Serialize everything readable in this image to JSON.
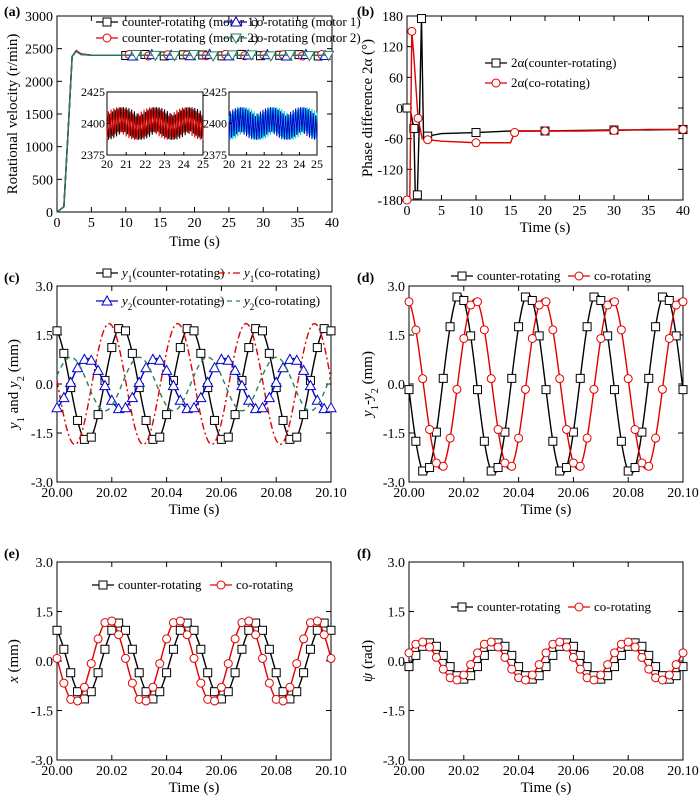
{
  "chart_data": [
    {
      "panel": "(a)",
      "type": "line",
      "xlabel": "Time (s)",
      "ylabel": "Rotational velocity (r/min)",
      "xlim": [
        0,
        40
      ],
      "ylim": [
        0,
        3000
      ],
      "xticks": [
        "0",
        "5",
        "10",
        "15",
        "20",
        "25",
        "30",
        "35",
        "40"
      ],
      "yticks": [
        "0",
        "500",
        "1000",
        "1500",
        "2000",
        "2500",
        "3000"
      ],
      "legend_position": "top",
      "steady_state": 2400,
      "series": [
        {
          "name": "counter-rotating (motor 1)",
          "color": "#000000",
          "marker": "square",
          "values": [
            [
              0,
              0
            ],
            [
              1,
              80
            ],
            [
              1.6,
              1200
            ],
            [
              2.2,
              2380
            ],
            [
              2.8,
              2470
            ],
            [
              3.5,
              2420
            ],
            [
              5,
              2400
            ],
            [
              40,
              2400
            ]
          ]
        },
        {
          "name": "counter-rotating (motor 2)",
          "color": "#e00000",
          "marker": "circle",
          "values": [
            [
              0,
              0
            ],
            [
              1,
              80
            ],
            [
              1.6,
              1200
            ],
            [
              2.2,
              2380
            ],
            [
              2.8,
              2470
            ],
            [
              3.5,
              2420
            ],
            [
              5,
              2400
            ],
            [
              40,
              2400
            ]
          ]
        },
        {
          "name": "co-rotating (motor 1)",
          "color": "#0000cc",
          "marker": "triangle-up",
          "values": [
            [
              0,
              0
            ],
            [
              1,
              80
            ],
            [
              1.6,
              1200
            ],
            [
              2.2,
              2380
            ],
            [
              2.8,
              2460
            ],
            [
              3.5,
              2410
            ],
            [
              5,
              2400
            ],
            [
              40,
              2400
            ]
          ]
        },
        {
          "name": "co-rotating (motor 2)",
          "color": "#2e7d5b",
          "marker": "triangle-down",
          "values": [
            [
              0,
              0
            ],
            [
              1,
              80
            ],
            [
              1.6,
              1200
            ],
            [
              2.2,
              2380
            ],
            [
              2.8,
              2460
            ],
            [
              3.5,
              2410
            ],
            [
              5,
              2400
            ],
            [
              40,
              2400
            ]
          ]
        }
      ],
      "insets": [
        {
          "xlim": [
            20,
            25
          ],
          "ylim": [
            2375,
            2425
          ],
          "xticks": [
            "20",
            "21",
            "22",
            "23",
            "24",
            "25"
          ],
          "yticks": [
            "2375",
            "2400",
            "2425"
          ],
          "series_colors": [
            "#000000",
            "#e00000"
          ]
        },
        {
          "xlim": [
            20,
            25
          ],
          "ylim": [
            2375,
            2425
          ],
          "xticks": [
            "20",
            "21",
            "22",
            "23",
            "24",
            "25"
          ],
          "yticks": [
            "2375",
            "2400",
            "2425"
          ],
          "series_colors": [
            "#00cccc",
            "#0000cc"
          ]
        }
      ]
    },
    {
      "panel": "(b)",
      "type": "line",
      "xlabel": "Time (s)",
      "ylabel": "Phase difference 2α (°)",
      "xlim": [
        0,
        40
      ],
      "ylim": [
        -180,
        180
      ],
      "xticks": [
        "0",
        "5",
        "10",
        "15",
        "20",
        "25",
        "30",
        "35",
        "40"
      ],
      "yticks": [
        "-180",
        "-120",
        "-60",
        "0",
        "60",
        "120",
        "180"
      ],
      "legend_position": "top-right",
      "series": [
        {
          "name": "2α(counter-rotating)",
          "color": "#000000",
          "marker": "square",
          "values": [
            [
              0,
              0
            ],
            [
              0.5,
              -5
            ],
            [
              1,
              -40
            ],
            [
              1.2,
              -170
            ],
            [
              1.5,
              -170
            ],
            [
              1.8,
              -20
            ],
            [
              2.1,
              175
            ],
            [
              2.4,
              -60
            ],
            [
              3,
              -55
            ],
            [
              5,
              -50
            ],
            [
              10,
              -48
            ],
            [
              15,
              -45
            ],
            [
              20,
              -45
            ],
            [
              25,
              -44
            ],
            [
              30,
              -43
            ],
            [
              35,
              -43
            ],
            [
              40,
              -42
            ]
          ]
        },
        {
          "name": "2α(co-rotating)",
          "color": "#e00000",
          "marker": "circle",
          "values": [
            [
              0,
              -180
            ],
            [
              0.4,
              -180
            ],
            [
              0.7,
              150
            ],
            [
              1,
              100
            ],
            [
              1.6,
              -20
            ],
            [
              2.2,
              -60
            ],
            [
              3,
              -62
            ],
            [
              5,
              -65
            ],
            [
              10,
              -68
            ],
            [
              15,
              -68
            ],
            [
              15.6,
              -48
            ],
            [
              16,
              -45
            ],
            [
              20,
              -45
            ],
            [
              25,
              -45
            ],
            [
              30,
              -44
            ],
            [
              35,
              -42
            ],
            [
              40,
              -42
            ]
          ]
        }
      ]
    },
    {
      "panel": "(c)",
      "type": "line",
      "xlabel": "Time (s)",
      "ylabel": "y1 and y2 (mm)",
      "xlim": [
        20.0,
        20.1
      ],
      "ylim": [
        -3.0,
        3.0
      ],
      "xticks": [
        "20.00",
        "20.02",
        "20.04",
        "20.06",
        "20.08",
        "20.10"
      ],
      "yticks": [
        "-3.0",
        "-1.5",
        "0.0",
        "1.5",
        "3.0"
      ],
      "legend_position": "top",
      "series": [
        {
          "name": "y1(counter-rotating)",
          "color": "#000000",
          "marker": "square",
          "dash": "",
          "amplitude": 1.75,
          "peak_time": 20.0235,
          "period": 0.025
        },
        {
          "name": "y1(co-rotating)",
          "color": "#e00000",
          "marker": "none",
          "dash": "7,3,2,3",
          "amplitude": 1.85,
          "peak_time": 20.019,
          "period": 0.025
        },
        {
          "name": "y2(counter-rotating)",
          "color": "#0000cc",
          "marker": "triangle-up",
          "dash": "",
          "amplitude": 0.78,
          "peak_time": 20.011,
          "period": 0.025
        },
        {
          "name": "y2(co-rotating)",
          "color": "#2e7d5b",
          "marker": "none",
          "dash": "5,4",
          "amplitude": 0.82,
          "peak_time": 20.005,
          "period": 0.025
        }
      ]
    },
    {
      "panel": "(d)",
      "type": "line",
      "xlabel": "Time (s)",
      "ylabel": "y1-y2 (mm)",
      "xlim": [
        20.0,
        20.1
      ],
      "ylim": [
        -3.0,
        3.0
      ],
      "xticks": [
        "20.00",
        "20.02",
        "20.04",
        "20.06",
        "20.08",
        "20.10"
      ],
      "yticks": [
        "-3.0",
        "-1.5",
        "0.0",
        "1.5",
        "3.0"
      ],
      "legend_position": "top",
      "series": [
        {
          "name": "counter-rotating",
          "color": "#000000",
          "marker": "square",
          "amplitude": 2.75,
          "peak_time": 20.0185,
          "period": 0.025
        },
        {
          "name": "co-rotating",
          "color": "#e00000",
          "marker": "circle",
          "amplitude": 2.6,
          "peak_time": 20.024,
          "period": 0.025
        }
      ]
    },
    {
      "panel": "(e)",
      "type": "line",
      "xlabel": "Time (s)",
      "ylabel": "x (mm)",
      "xlim": [
        20.0,
        20.1
      ],
      "ylim": [
        -3.0,
        3.0
      ],
      "xticks": [
        "20.00",
        "20.02",
        "20.04",
        "20.06",
        "20.08",
        "20.10"
      ],
      "yticks": [
        "-3.0",
        "-1.5",
        "0.0",
        "1.5",
        "3.0"
      ],
      "legend_position": "top",
      "series": [
        {
          "name": "counter-rotating",
          "color": "#000000",
          "marker": "square",
          "amplitude": 1.15,
          "peak_time": 20.0225,
          "period": 0.025
        },
        {
          "name": "co-rotating",
          "color": "#e00000",
          "marker": "circle",
          "amplitude": 1.25,
          "peak_time": 20.019,
          "period": 0.025
        }
      ]
    },
    {
      "panel": "(f)",
      "type": "line",
      "xlabel": "Time (s)",
      "ylabel": "ψ (rad)",
      "xlim": [
        20.0,
        20.1
      ],
      "ylim": [
        -3.0,
        3.0
      ],
      "xticks": [
        "20.00",
        "20.02",
        "20.04",
        "20.06",
        "20.08",
        "20.10"
      ],
      "yticks": [
        "-3.0",
        "-1.5",
        "0.0",
        "1.5",
        "3.0"
      ],
      "legend_position": "top",
      "series": [
        {
          "name": "counter-rotating",
          "color": "#000000",
          "marker": "square",
          "amplitude": 0.55,
          "peak_time": 20.0075,
          "period": 0.025
        },
        {
          "name": "co-rotating",
          "color": "#e00000",
          "marker": "circle",
          "amplitude": 0.58,
          "peak_time": 20.0045,
          "period": 0.025
        }
      ]
    }
  ]
}
